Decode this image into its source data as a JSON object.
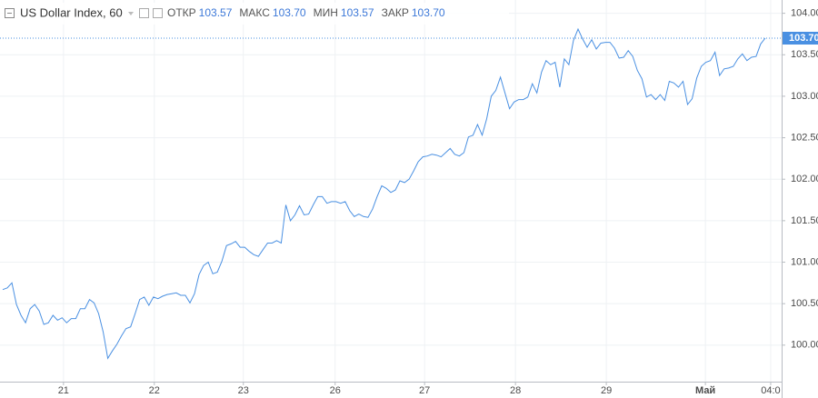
{
  "chart_data": {
    "type": "line",
    "title": "US Dollar Index, 60",
    "ohlc": [
      {
        "label": "ОТКР",
        "value": 103.57
      },
      {
        "label": "МАКС",
        "value": {
          "value": 103.7,
          "label": "103.70"
        }
      },
      {
        "label": "МИН",
        "value": 103.57
      },
      {
        "label": "ЗАКР",
        "value": {
          "value": 103.7,
          "label": "103.70"
        }
      }
    ],
    "last_price": {
      "value": 103.7,
      "label": "103.70"
    },
    "color": "#4a90e2",
    "grid": true,
    "values": [
      100.67,
      100.69,
      100.75,
      100.49,
      100.36,
      100.27,
      100.44,
      100.49,
      100.41,
      100.25,
      100.27,
      100.36,
      100.3,
      100.33,
      100.27,
      100.32,
      100.32,
      100.44,
      100.44,
      100.55,
      100.51,
      100.38,
      100.16,
      99.84,
      99.93,
      100.01,
      100.11,
      100.2,
      100.22,
      100.38,
      100.55,
      100.58,
      100.48,
      100.58,
      100.56,
      100.59,
      100.61,
      100.62,
      100.63,
      100.6,
      100.6,
      100.51,
      100.62,
      100.85,
      100.96,
      101.0,
      100.86,
      100.88,
      101.01,
      101.2,
      101.22,
      101.25,
      101.18,
      101.18,
      101.13,
      101.09,
      101.07,
      101.15,
      101.23,
      101.23,
      101.26,
      101.23,
      101.69,
      101.5,
      101.57,
      101.68,
      101.57,
      101.58,
      101.69,
      101.79,
      101.79,
      101.71,
      101.73,
      101.73,
      101.71,
      101.73,
      101.62,
      101.55,
      101.58,
      101.55,
      101.54,
      101.64,
      101.79,
      101.92,
      101.89,
      101.84,
      101.87,
      101.98,
      101.96,
      102.0,
      102.1,
      102.21,
      102.27,
      102.28,
      102.3,
      102.29,
      102.27,
      102.32,
      102.37,
      102.3,
      102.28,
      102.32,
      102.51,
      102.53,
      102.66,
      102.53,
      102.73,
      103.0,
      103.07,
      103.23,
      103.04,
      102.85,
      102.93,
      102.96,
      102.96,
      102.99,
      103.15,
      103.04,
      103.29,
      103.43,
      103.38,
      103.41,
      103.11,
      103.45,
      103.38,
      103.67,
      103.81,
      103.69,
      103.59,
      103.68,
      103.57,
      103.64,
      103.65,
      103.65,
      103.58,
      103.46,
      103.47,
      103.55,
      103.48,
      103.31,
      103.21,
      102.99,
      103.02,
      102.96,
      103.02,
      102.95,
      103.18,
      103.16,
      103.11,
      103.18,
      102.9,
      102.97,
      103.22,
      103.36,
      103.41,
      103.43,
      103.53,
      103.25,
      103.33,
      103.34,
      103.36,
      103.45,
      103.51,
      103.43,
      103.47,
      103.48,
      103.63,
      103.7
    ],
    "xlim": [
      -0.6,
      170.6
    ],
    "xticks": [
      {
        "value": 13.3,
        "label": "21"
      },
      {
        "value": 33.2,
        "label": "22"
      },
      {
        "value": 52.7,
        "label": "23"
      },
      {
        "value": 72.8,
        "label": "26"
      },
      {
        "value": 92.4,
        "label": "27"
      },
      {
        "value": 112.3,
        "label": "28"
      },
      {
        "value": 132.2,
        "label": "29"
      },
      {
        "value": 153.9,
        "label": "Май"
      },
      {
        "value": 168.2,
        "label": "04:0"
      }
    ],
    "ylim": [
      99.56,
      104.16
    ],
    "yticks": [
      {
        "value": 100,
        "label": "100.00"
      },
      {
        "value": 100.5,
        "label": "100.50"
      },
      {
        "value": 101,
        "label": "101.00"
      },
      {
        "value": 101.5,
        "label": "101.50"
      },
      {
        "value": 102,
        "label": "102.00"
      },
      {
        "value": 102.5,
        "label": "102.50"
      },
      {
        "value": 103,
        "label": "103.00"
      },
      {
        "value": 103.5,
        "label": "103.50"
      },
      {
        "value": 104,
        "label": "104.00"
      }
    ]
  }
}
